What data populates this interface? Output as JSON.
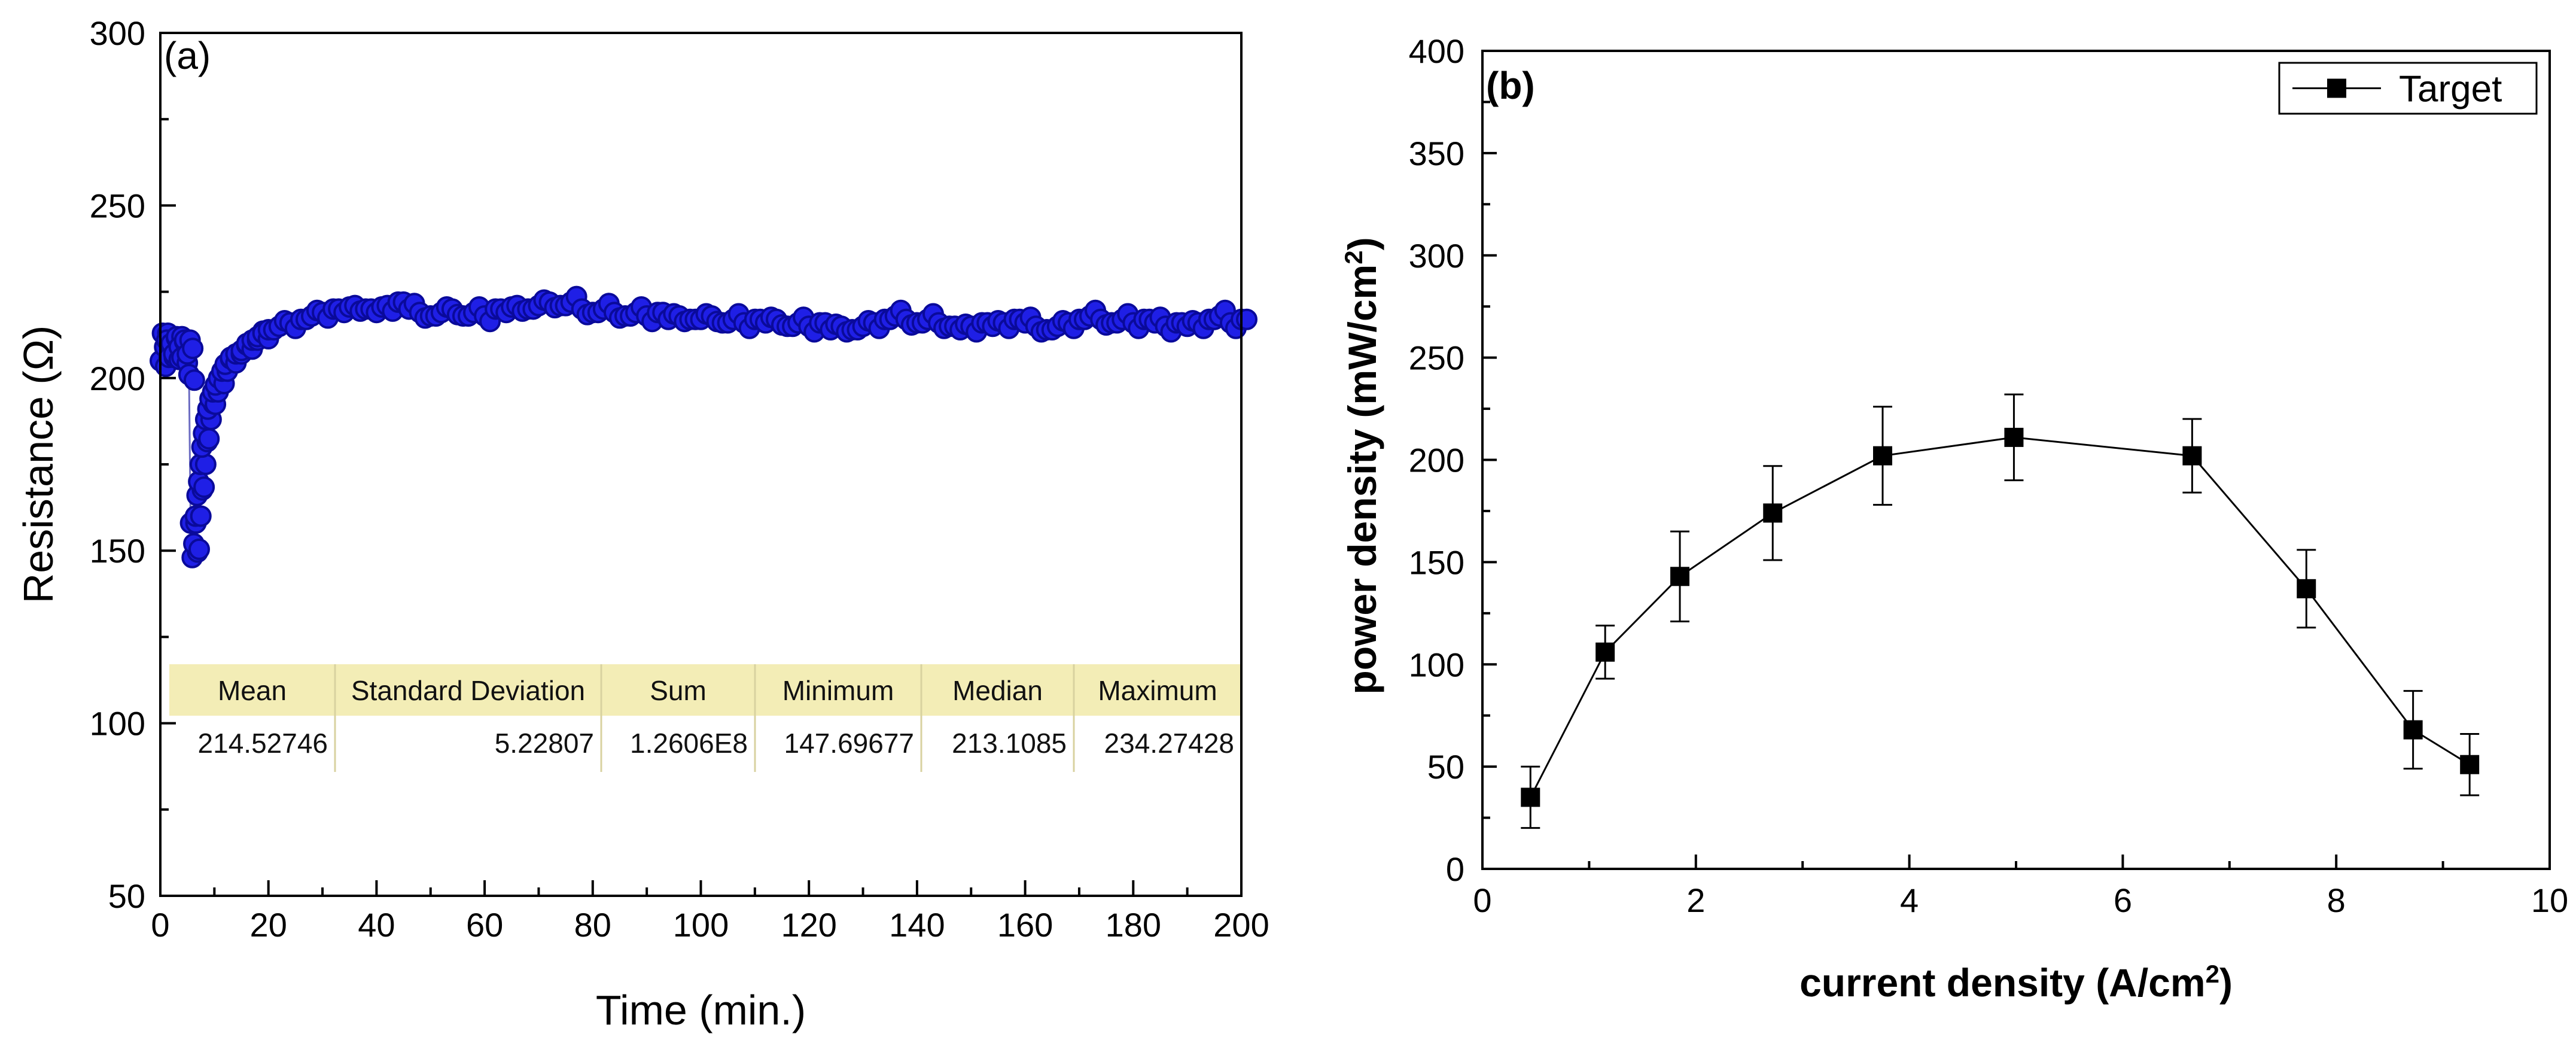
{
  "colors": {
    "marker_a": "#1f1fe6",
    "marker_a_edge": "#0a0a9a",
    "stats_header_bg": "#f3edb6",
    "axis": "#000000",
    "series_b": "#000000"
  },
  "chart_data": [
    {
      "panel_label": "(a)",
      "type": "scatter",
      "title": "",
      "xlabel": "Time (min.)",
      "ylabel": "Resistance (Ω)",
      "xlim": [
        0,
        200
      ],
      "ylim": [
        50,
        300
      ],
      "xticks": [
        0,
        20,
        40,
        60,
        80,
        100,
        120,
        140,
        160,
        180,
        200
      ],
      "yticks": [
        50,
        100,
        150,
        200,
        250,
        300
      ],
      "grid": false,
      "series": [
        {
          "name": "Resistance",
          "marker": "circle",
          "x": [
            0,
            0.4,
            0.8,
            1.2,
            1.6,
            2.0,
            2.5,
            3.0,
            3.5,
            4.0,
            4.5,
            5.0,
            5.3,
            5.6,
            5.9,
            6.2,
            6.5,
            6.8,
            7.1,
            7.4,
            7.7,
            8.0,
            8.4,
            8.8,
            9.2,
            9.7,
            10.2,
            10.8,
            11.4,
            12.0,
            13,
            14,
            15,
            16,
            17,
            18,
            19,
            20,
            22,
            24,
            26,
            28,
            30,
            32,
            34,
            36,
            38,
            40,
            42,
            44,
            46,
            48,
            50,
            52,
            54,
            56,
            58,
            60,
            62,
            64,
            66,
            68,
            70,
            72,
            74,
            76,
            78,
            80,
            82,
            84,
            86,
            88,
            90,
            92,
            94,
            96,
            98,
            100,
            102,
            104,
            106,
            108,
            110,
            112,
            114,
            116,
            118,
            120,
            122,
            124,
            126,
            128,
            130,
            132,
            134,
            136,
            138,
            140,
            142,
            144,
            146,
            148,
            150,
            152,
            154,
            156,
            158,
            160,
            162,
            164,
            166,
            168,
            170,
            172,
            174,
            176,
            178,
            180,
            182,
            184,
            186,
            188,
            190,
            192,
            194,
            196,
            198,
            200
          ],
          "y": [
            205,
            213,
            209,
            211,
            206,
            210,
            207,
            212,
            209,
            206,
            211,
            207,
            201,
            158,
            148,
            152,
            160,
            166,
            170,
            175,
            180,
            184,
            188,
            191,
            194,
            196,
            198,
            200,
            202,
            204,
            206,
            207,
            208,
            210,
            211,
            212,
            213,
            214,
            215,
            216,
            217,
            218,
            219,
            220,
            219,
            221,
            220,
            219,
            221,
            222,
            220,
            219,
            218,
            219,
            220,
            218,
            219,
            218,
            220,
            219,
            221,
            220,
            221,
            222,
            221,
            222,
            220,
            219,
            220,
            219,
            218,
            219,
            218,
            219,
            217,
            218,
            217,
            217,
            218,
            216,
            217,
            216,
            217,
            216,
            217,
            215,
            216,
            215,
            216,
            214,
            215,
            214,
            215,
            216,
            217,
            218,
            217,
            216,
            217,
            216,
            215,
            214,
            215,
            216,
            215,
            216,
            217,
            216,
            215,
            214,
            215,
            216,
            217,
            218,
            217,
            216,
            217,
            216,
            217,
            216,
            215,
            216,
            215,
            216,
            217,
            218,
            216,
            217
          ]
        }
      ],
      "stats_table": {
        "headers": [
          "Mean",
          "Standard Deviation",
          "Sum",
          "Minimum",
          "Median",
          "Maximum"
        ],
        "values": [
          "214.52746",
          "5.22807",
          "1.2606E8",
          "147.69677",
          "213.1085",
          "234.27428"
        ]
      }
    },
    {
      "panel_label": "(b)",
      "type": "line",
      "title": "",
      "xlabel": "current density (A/cm²)",
      "ylabel": "power density (mW/cm²)",
      "xlim": [
        0,
        10
      ],
      "ylim": [
        0,
        400
      ],
      "xticks": [
        0,
        2,
        4,
        6,
        8,
        10
      ],
      "yticks": [
        0,
        50,
        100,
        150,
        200,
        250,
        300,
        350,
        400
      ],
      "grid": false,
      "legend": {
        "position": "top-right",
        "entries": [
          "Target"
        ]
      },
      "series": [
        {
          "name": "Target",
          "marker": "square",
          "x": [
            0.45,
            1.15,
            1.85,
            2.72,
            3.75,
            4.98,
            6.65,
            7.72,
            8.72,
            9.25
          ],
          "y": [
            35,
            106,
            143,
            174,
            202,
            211,
            202,
            137,
            68,
            51
          ],
          "error": [
            15,
            13,
            22,
            23,
            24,
            21,
            18,
            19,
            19,
            15
          ]
        }
      ]
    }
  ]
}
